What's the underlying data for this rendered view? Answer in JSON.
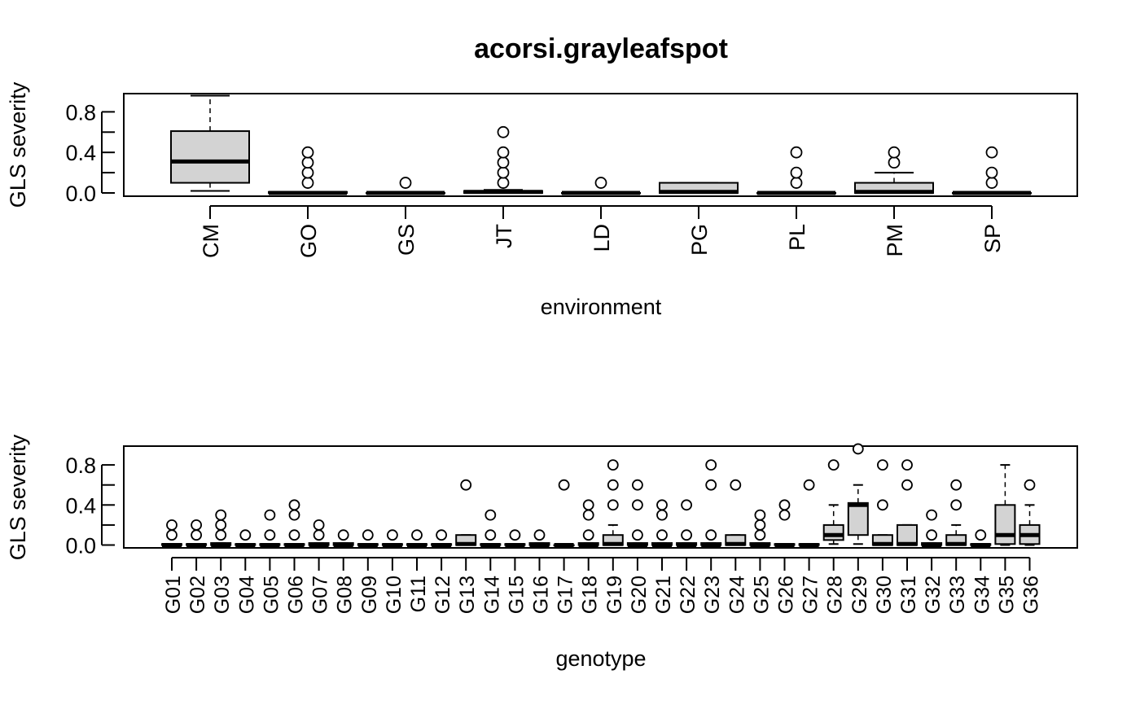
{
  "chart_data": [
    {
      "type": "box",
      "title": "acorsi.grayleafspot",
      "xlabel": "environment",
      "ylabel": "GLS severity",
      "ylim": [
        0,
        1
      ],
      "yticks": [
        "0.0",
        "0.4",
        "0.8"
      ],
      "categories": [
        "CM",
        "GO",
        "GS",
        "JT",
        "LD",
        "PG",
        "PL",
        "PM",
        "SP"
      ],
      "boxes": [
        {
          "min": 0.02,
          "q1": 0.1,
          "median": 0.31,
          "q3": 0.61,
          "max": 0.96,
          "outliers": []
        },
        {
          "min": 0.0,
          "q1": 0.0,
          "median": 0.0,
          "q3": 0.01,
          "max": 0.01,
          "outliers": [
            0.1,
            0.2,
            0.3,
            0.4
          ]
        },
        {
          "min": 0.0,
          "q1": 0.0,
          "median": 0.0,
          "q3": 0.0,
          "max": 0.0,
          "outliers": [
            0.1
          ]
        },
        {
          "min": 0.0,
          "q1": 0.0,
          "median": 0.01,
          "q3": 0.02,
          "max": 0.03,
          "outliers": [
            0.1,
            0.2,
            0.3,
            0.4,
            0.6
          ]
        },
        {
          "min": 0.0,
          "q1": 0.0,
          "median": 0.0,
          "q3": 0.0,
          "max": 0.0,
          "outliers": [
            0.1
          ]
        },
        {
          "min": 0.0,
          "q1": 0.0,
          "median": 0.01,
          "q3": 0.1,
          "max": 0.1,
          "outliers": []
        },
        {
          "min": 0.0,
          "q1": 0.0,
          "median": 0.0,
          "q3": 0.0,
          "max": 0.0,
          "outliers": [
            0.1,
            0.2,
            0.4
          ]
        },
        {
          "min": 0.0,
          "q1": 0.0,
          "median": 0.01,
          "q3": 0.1,
          "max": 0.2,
          "outliers": [
            0.3,
            0.4
          ]
        },
        {
          "min": 0.0,
          "q1": 0.0,
          "median": 0.0,
          "q3": 0.0,
          "max": 0.0,
          "outliers": [
            0.1,
            0.2,
            0.4
          ]
        }
      ]
    },
    {
      "type": "box",
      "title": "",
      "xlabel": "genotype",
      "ylabel": "GLS severity",
      "ylim": [
        0,
        1
      ],
      "yticks": [
        "0.0",
        "0.4",
        "0.8"
      ],
      "categories": [
        "G01",
        "G02",
        "G03",
        "G04",
        "G05",
        "G06",
        "G07",
        "G08",
        "G09",
        "G10",
        "G11",
        "G12",
        "G13",
        "G14",
        "G15",
        "G16",
        "G17",
        "G18",
        "G19",
        "G20",
        "G21",
        "G22",
        "G23",
        "G24",
        "G25",
        "G26",
        "G27",
        "G28",
        "G29",
        "G30",
        "G31",
        "G32",
        "G33",
        "G34",
        "G35",
        "G36"
      ],
      "boxes": [
        {
          "min": 0,
          "q1": 0,
          "median": 0,
          "q3": 0.01,
          "max": 0.01,
          "outliers": [
            0.1,
            0.2
          ]
        },
        {
          "min": 0,
          "q1": 0,
          "median": 0,
          "q3": 0.01,
          "max": 0.01,
          "outliers": [
            0.1,
            0.2
          ]
        },
        {
          "min": 0,
          "q1": 0,
          "median": 0,
          "q3": 0.02,
          "max": 0.02,
          "outliers": [
            0.1,
            0.2,
            0.3
          ]
        },
        {
          "min": 0,
          "q1": 0,
          "median": 0,
          "q3": 0.01,
          "max": 0.01,
          "outliers": [
            0.1
          ]
        },
        {
          "min": 0,
          "q1": 0,
          "median": 0,
          "q3": 0.01,
          "max": 0.01,
          "outliers": [
            0.1,
            0.3
          ]
        },
        {
          "min": 0,
          "q1": 0,
          "median": 0,
          "q3": 0.01,
          "max": 0.01,
          "outliers": [
            0.1,
            0.3,
            0.4
          ]
        },
        {
          "min": 0,
          "q1": 0,
          "median": 0,
          "q3": 0.02,
          "max": 0.02,
          "outliers": [
            0.1,
            0.2
          ]
        },
        {
          "min": 0,
          "q1": 0,
          "median": 0,
          "q3": 0.02,
          "max": 0.02,
          "outliers": [
            0.1
          ]
        },
        {
          "min": 0,
          "q1": 0,
          "median": 0,
          "q3": 0.01,
          "max": 0.01,
          "outliers": [
            0.1
          ]
        },
        {
          "min": 0,
          "q1": 0,
          "median": 0,
          "q3": 0.01,
          "max": 0.01,
          "outliers": [
            0.1
          ]
        },
        {
          "min": 0,
          "q1": 0,
          "median": 0,
          "q3": 0.01,
          "max": 0.01,
          "outliers": [
            0.1
          ]
        },
        {
          "min": 0,
          "q1": 0,
          "median": 0,
          "q3": 0.01,
          "max": 0.01,
          "outliers": [
            0.1
          ]
        },
        {
          "min": 0,
          "q1": 0,
          "median": 0.01,
          "q3": 0.1,
          "max": 0.1,
          "outliers": [
            0.6
          ]
        },
        {
          "min": 0,
          "q1": 0,
          "median": 0,
          "q3": 0.01,
          "max": 0.01,
          "outliers": [
            0.1,
            0.3
          ]
        },
        {
          "min": 0,
          "q1": 0,
          "median": 0,
          "q3": 0.01,
          "max": 0.01,
          "outliers": [
            0.1
          ]
        },
        {
          "min": 0,
          "q1": 0,
          "median": 0,
          "q3": 0.02,
          "max": 0.02,
          "outliers": [
            0.1
          ]
        },
        {
          "min": 0,
          "q1": 0,
          "median": 0,
          "q3": 0.0,
          "max": 0.0,
          "outliers": [
            0.6
          ]
        },
        {
          "min": 0,
          "q1": 0,
          "median": 0,
          "q3": 0.02,
          "max": 0.02,
          "outliers": [
            0.1,
            0.3,
            0.4
          ]
        },
        {
          "min": 0,
          "q1": 0,
          "median": 0.01,
          "q3": 0.1,
          "max": 0.2,
          "outliers": [
            0.4,
            0.6,
            0.8
          ]
        },
        {
          "min": 0,
          "q1": 0,
          "median": 0,
          "q3": 0.02,
          "max": 0.02,
          "outliers": [
            0.1,
            0.4,
            0.6
          ]
        },
        {
          "min": 0,
          "q1": 0,
          "median": 0,
          "q3": 0.02,
          "max": 0.02,
          "outliers": [
            0.1,
            0.3,
            0.4
          ]
        },
        {
          "min": 0,
          "q1": 0,
          "median": 0,
          "q3": 0.02,
          "max": 0.02,
          "outliers": [
            0.1,
            0.4
          ]
        },
        {
          "min": 0,
          "q1": 0,
          "median": 0,
          "q3": 0.02,
          "max": 0.02,
          "outliers": [
            0.1,
            0.6,
            0.8
          ]
        },
        {
          "min": 0,
          "q1": 0,
          "median": 0.01,
          "q3": 0.1,
          "max": 0.1,
          "outliers": [
            0.6
          ]
        },
        {
          "min": 0,
          "q1": 0,
          "median": 0,
          "q3": 0.02,
          "max": 0.02,
          "outliers": [
            0.1,
            0.2,
            0.3
          ]
        },
        {
          "min": 0,
          "q1": 0,
          "median": 0,
          "q3": 0.01,
          "max": 0.01,
          "outliers": [
            0.3,
            0.4
          ]
        },
        {
          "min": 0,
          "q1": 0,
          "median": 0,
          "q3": 0.01,
          "max": 0.01,
          "outliers": [
            0.6
          ]
        },
        {
          "min": 0.01,
          "q1": 0.05,
          "median": 0.1,
          "q3": 0.2,
          "max": 0.4,
          "outliers": [
            0.8
          ]
        },
        {
          "min": 0.01,
          "q1": 0.1,
          "median": 0.4,
          "q3": 0.42,
          "max": 0.6,
          "outliers": [
            0.96
          ]
        },
        {
          "min": 0,
          "q1": 0,
          "median": 0.01,
          "q3": 0.1,
          "max": 0.1,
          "outliers": [
            0.4,
            0.8
          ]
        },
        {
          "min": 0,
          "q1": 0,
          "median": 0.01,
          "q3": 0.2,
          "max": 0.2,
          "outliers": [
            0.6,
            0.8
          ]
        },
        {
          "min": 0,
          "q1": 0,
          "median": 0,
          "q3": 0.02,
          "max": 0.02,
          "outliers": [
            0.1,
            0.3
          ]
        },
        {
          "min": 0,
          "q1": 0,
          "median": 0.01,
          "q3": 0.1,
          "max": 0.2,
          "outliers": [
            0.4,
            0.6
          ]
        },
        {
          "min": 0,
          "q1": 0,
          "median": 0,
          "q3": 0.01,
          "max": 0.01,
          "outliers": [
            0.1
          ]
        },
        {
          "min": 0,
          "q1": 0.01,
          "median": 0.1,
          "q3": 0.4,
          "max": 0.8,
          "outliers": []
        },
        {
          "min": 0,
          "q1": 0.01,
          "median": 0.1,
          "q3": 0.2,
          "max": 0.4,
          "outliers": [
            0.6
          ]
        }
      ]
    }
  ]
}
